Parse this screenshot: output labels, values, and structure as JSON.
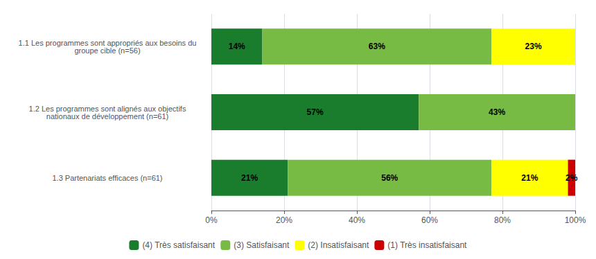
{
  "chart_data": {
    "type": "bar",
    "orientation": "horizontal",
    "stacked": true,
    "data_labels": true,
    "categories": [
      "1.3 Partenariats efficaces (n=61)",
      "1.2 Les programmes sont alignés aux objectifs\nnationaux de développement (n=61)",
      "1.1 Les programmes sont appropriés aux besoins du\ngroupe cible (n=56)"
    ],
    "series": [
      {
        "name": "(4) Très satisfaisant",
        "color": "#1a7d2e",
        "values": [
          21,
          57,
          14
        ],
        "value_labels": [
          "21%",
          "57%",
          "14%"
        ]
      },
      {
        "name": "(3) Satisfaisant",
        "color": "#77bb44",
        "values": [
          56,
          43,
          63
        ],
        "value_labels": [
          "56%",
          "43%",
          "63%"
        ]
      },
      {
        "name": "(2) Insatisfaisant",
        "color": "#ffff00",
        "values": [
          21,
          0,
          23
        ],
        "value_labels": [
          "21%",
          null,
          "23%"
        ]
      },
      {
        "name": "(1) Très insatisfaisant",
        "color": "#cc0000",
        "values": [
          2,
          0,
          0
        ],
        "value_labels": [
          "2%",
          null,
          null
        ]
      }
    ],
    "xlim": [
      0,
      100
    ],
    "xticks": [
      {
        "value": 0,
        "label": "0%"
      },
      {
        "value": 20,
        "label": "20%"
      },
      {
        "value": 40,
        "label": "40%"
      },
      {
        "value": 60,
        "label": "60%"
      },
      {
        "value": 80,
        "label": "80%"
      },
      {
        "value": 100,
        "label": "100%"
      }
    ],
    "grid": true,
    "legend": "bottom"
  }
}
